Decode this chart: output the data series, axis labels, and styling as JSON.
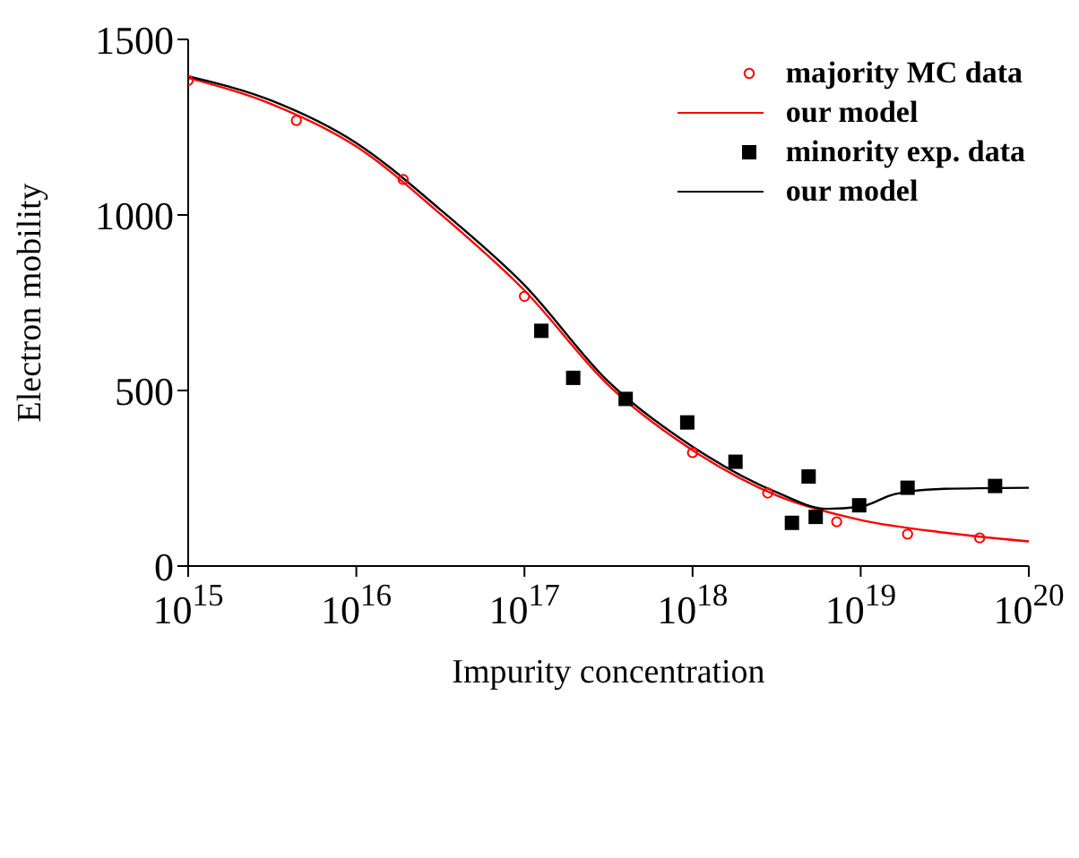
{
  "chart_data": {
    "type": "scatter",
    "xlabel": "Impurity concentration",
    "ylabel": "Electron mobility",
    "log": "x",
    "xlim": [
      1000000000000000.0,
      1e+20
    ],
    "xticks": [
      {
        "value": 1000000000000000.0,
        "label": "10$^{15}$"
      },
      {
        "value": 1e+16,
        "label": "10$^{16}$"
      },
      {
        "value": 1e+17,
        "label": "10$^{17}$"
      },
      {
        "value": 1e+18,
        "label": "10$^{18}$"
      },
      {
        "value": 1e+19,
        "label": "10$^{19}$"
      },
      {
        "value": 1e+20,
        "label": "10$^{20}$"
      }
    ],
    "ylim": [
      0,
      1500
    ],
    "yticks": [
      0,
      500,
      1000,
      1500
    ],
    "grid": false,
    "legend": "top right",
    "series": [
      {
        "name": "majority MC data",
        "marker": "circle",
        "color": "#ff0000",
        "x": [
          1000000000000000.0,
          4400000000000000.0,
          1.9e+16,
          1e+17,
          1e+18,
          2.8e+18,
          7.2e+18,
          1.9e+19,
          5.1e+19
        ],
        "values": [
          1383,
          1269,
          1101,
          768,
          323,
          208,
          126,
          91,
          80
        ]
      },
      {
        "name": "our model",
        "type": "line",
        "marker": "none",
        "line_style": "solid",
        "color": "#ff0000",
        "x": [
          1000000000000000.0,
          3160000000000000.0,
          1e+16,
          3.16e+16,
          1e+17,
          3.16e+17,
          1e+18,
          3.16e+18,
          1e+19,
          3.16e+19,
          1e+20
        ],
        "values": [
          1390,
          1315,
          1195,
          1003,
          785,
          515,
          330,
          201,
          131,
          95,
          70
        ]
      },
      {
        "name": "minority exp. data",
        "marker": "square",
        "color": "#000000",
        "x": [
          1.26e+17,
          1.95e+17,
          4e+17,
          9.3e+17,
          1.8e+18,
          3.9e+18,
          4.9e+18,
          5.4e+18,
          9.8e+18,
          1.9e+19,
          6.3e+19
        ],
        "values": [
          670,
          536,
          476,
          409,
          297,
          123,
          255,
          140,
          173,
          223,
          228
        ]
      },
      {
        "name": "our model",
        "type": "line",
        "marker": "none",
        "line_style": "solid",
        "color": "#000000",
        "x": [
          1000000000000000.0,
          3160000000000000.0,
          1e+16,
          3.16e+16,
          1e+17,
          3.16e+17,
          1e+18,
          3.16e+18,
          6.3e+18,
          1e+19,
          1.6e+19,
          3.16e+19,
          1e+20
        ],
        "values": [
          1395,
          1325,
          1205,
          1015,
          800,
          525,
          340,
          210,
          163,
          169,
          205,
          220,
          223
        ]
      }
    ]
  }
}
